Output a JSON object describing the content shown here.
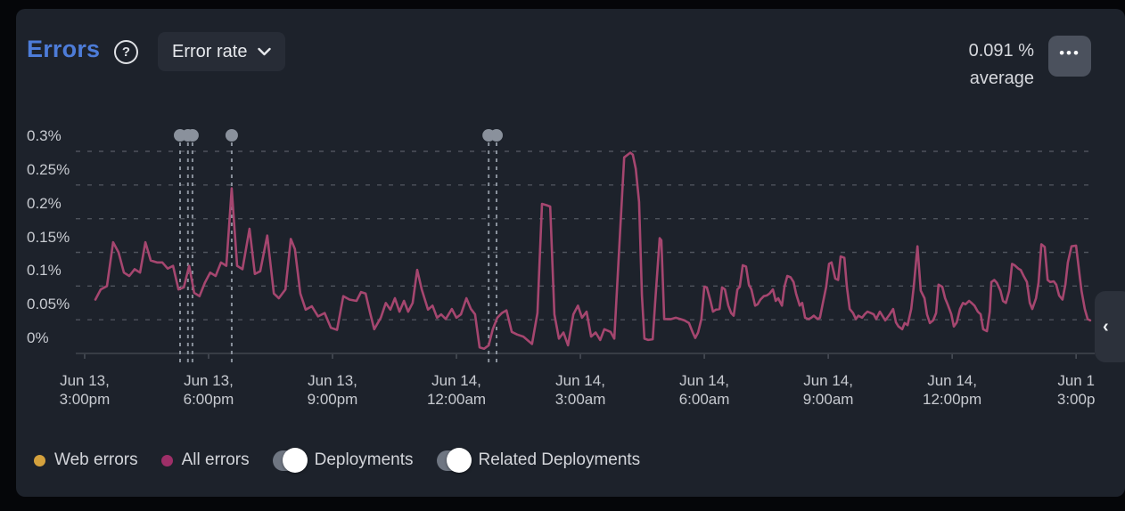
{
  "header": {
    "title": "Errors",
    "help_icon": "?",
    "metric_selector_label": "Error rate",
    "summary_value": "0.091 %",
    "summary_caption": "average",
    "menu_icon": "•••"
  },
  "colors": {
    "page_bg": "#050609",
    "panel_bg": "#1d222b",
    "accent_blue": "#4d7cd8",
    "grid_line": "#4e535c",
    "axis_line": "#42464e",
    "axis_text": "#c7cad0",
    "error_line": "#a5466f",
    "web_errors_dot": "#d4a13d",
    "all_errors_dot": "#9e2f68",
    "deployment_marker": "#8a919c",
    "toggle_knob": "#ffffff"
  },
  "chart_data": {
    "type": "line",
    "title": "Error rate",
    "xlabel": "",
    "ylabel": "",
    "grid": "horizontal-dashed",
    "legend_position": "bottom",
    "ylim": [
      0,
      0.3
    ],
    "xlim_hours": [
      -0.215,
      24.45
    ],
    "y_ticks": [
      {
        "label": "0.3%",
        "value": 0.3
      },
      {
        "label": "0.25%",
        "value": 0.25
      },
      {
        "label": "0.2%",
        "value": 0.2
      },
      {
        "label": "0.15%",
        "value": 0.15
      },
      {
        "label": "0.1%",
        "value": 0.1
      },
      {
        "label": "0.05%",
        "value": 0.05
      },
      {
        "label": "0%",
        "value": 0
      }
    ],
    "x_ticks": [
      {
        "t": 0,
        "line1": "Jun 13,",
        "line2": "3:00pm"
      },
      {
        "t": 3,
        "line1": "Jun 13,",
        "line2": "6:00pm"
      },
      {
        "t": 6,
        "line1": "Jun 13,",
        "line2": "9:00pm"
      },
      {
        "t": 9,
        "line1": "Jun 14,",
        "line2": "12:00am"
      },
      {
        "t": 12,
        "line1": "Jun 14,",
        "line2": "3:00am"
      },
      {
        "t": 15,
        "line1": "Jun 14,",
        "line2": "6:00am"
      },
      {
        "t": 18,
        "line1": "Jun 14,",
        "line2": "9:00am"
      },
      {
        "t": 21,
        "line1": "Jun 14,",
        "line2": "12:00pm"
      },
      {
        "t": 24,
        "line1": "Jun 1",
        "line2": "3:00p"
      }
    ],
    "deployments": {
      "color": "#8a919c",
      "times_hours": [
        2.31,
        2.5,
        2.61,
        3.56,
        9.78,
        9.97
      ]
    },
    "series": [
      {
        "name": "All errors",
        "color": "#a5466f",
        "unit": "%",
        "points": [
          [
            0.26,
            0.08
          ],
          [
            0.39,
            0.095
          ],
          [
            0.54,
            0.1
          ],
          [
            0.69,
            0.165
          ],
          [
            0.82,
            0.15
          ],
          [
            0.95,
            0.12
          ],
          [
            1.08,
            0.115
          ],
          [
            1.21,
            0.125
          ],
          [
            1.34,
            0.12
          ],
          [
            1.47,
            0.165
          ],
          [
            1.6,
            0.138
          ],
          [
            1.75,
            0.135
          ],
          [
            1.88,
            0.135
          ],
          [
            2.01,
            0.126
          ],
          [
            2.14,
            0.13
          ],
          [
            2.27,
            0.095
          ],
          [
            2.4,
            0.098
          ],
          [
            2.53,
            0.13
          ],
          [
            2.65,
            0.09
          ],
          [
            2.78,
            0.085
          ],
          [
            2.91,
            0.105
          ],
          [
            3.04,
            0.12
          ],
          [
            3.17,
            0.115
          ],
          [
            3.3,
            0.135
          ],
          [
            3.43,
            0.13
          ],
          [
            3.56,
            0.245
          ],
          [
            3.69,
            0.13
          ],
          [
            3.82,
            0.125
          ],
          [
            3.99,
            0.185
          ],
          [
            4.12,
            0.118
          ],
          [
            4.25,
            0.122
          ],
          [
            4.42,
            0.175
          ],
          [
            4.58,
            0.089
          ],
          [
            4.7,
            0.082
          ],
          [
            4.86,
            0.095
          ],
          [
            4.99,
            0.17
          ],
          [
            5.09,
            0.155
          ],
          [
            5.22,
            0.089
          ],
          [
            5.35,
            0.065
          ],
          [
            5.5,
            0.07
          ],
          [
            5.65,
            0.055
          ],
          [
            5.81,
            0.06
          ],
          [
            5.96,
            0.038
          ],
          [
            6.11,
            0.035
          ],
          [
            6.26,
            0.085
          ],
          [
            6.41,
            0.08
          ],
          [
            6.58,
            0.078
          ],
          [
            6.69,
            0.091
          ],
          [
            6.8,
            0.089
          ],
          [
            6.91,
            0.06
          ],
          [
            7.01,
            0.036
          ],
          [
            7.17,
            0.053
          ],
          [
            7.29,
            0.075
          ],
          [
            7.4,
            0.065
          ],
          [
            7.51,
            0.082
          ],
          [
            7.62,
            0.062
          ],
          [
            7.73,
            0.078
          ],
          [
            7.83,
            0.062
          ],
          [
            7.94,
            0.075
          ],
          [
            8.05,
            0.124
          ],
          [
            8.16,
            0.095
          ],
          [
            8.31,
            0.065
          ],
          [
            8.42,
            0.071
          ],
          [
            8.53,
            0.053
          ],
          [
            8.63,
            0.058
          ],
          [
            8.74,
            0.051
          ],
          [
            8.89,
            0.066
          ],
          [
            9.0,
            0.053
          ],
          [
            9.11,
            0.058
          ],
          [
            9.24,
            0.082
          ],
          [
            9.35,
            0.066
          ],
          [
            9.45,
            0.058
          ],
          [
            9.56,
            0.009
          ],
          [
            9.67,
            0.007
          ],
          [
            9.78,
            0.012
          ],
          [
            9.88,
            0.036
          ],
          [
            9.99,
            0.053
          ],
          [
            10.1,
            0.06
          ],
          [
            10.21,
            0.064
          ],
          [
            10.34,
            0.032
          ],
          [
            10.47,
            0.028
          ],
          [
            10.62,
            0.025
          ],
          [
            10.83,
            0.014
          ],
          [
            10.96,
            0.06
          ],
          [
            11.07,
            0.222
          ],
          [
            11.18,
            0.22
          ],
          [
            11.27,
            0.218
          ],
          [
            11.37,
            0.058
          ],
          [
            11.48,
            0.022
          ],
          [
            11.59,
            0.031
          ],
          [
            11.7,
            0.012
          ],
          [
            11.83,
            0.058
          ],
          [
            11.94,
            0.071
          ],
          [
            12.04,
            0.053
          ],
          [
            12.15,
            0.062
          ],
          [
            12.26,
            0.025
          ],
          [
            12.37,
            0.031
          ],
          [
            12.48,
            0.02
          ],
          [
            12.58,
            0.036
          ],
          [
            12.73,
            0.032
          ],
          [
            12.82,
            0.022
          ],
          [
            12.95,
            0.168
          ],
          [
            13.06,
            0.291
          ],
          [
            13.21,
            0.298
          ],
          [
            13.27,
            0.295
          ],
          [
            13.34,
            0.274
          ],
          [
            13.42,
            0.225
          ],
          [
            13.49,
            0.086
          ],
          [
            13.55,
            0.022
          ],
          [
            13.64,
            0.02
          ],
          [
            13.75,
            0.021
          ],
          [
            13.81,
            0.075
          ],
          [
            13.92,
            0.171
          ],
          [
            13.96,
            0.168
          ],
          [
            14.03,
            0.051
          ],
          [
            14.2,
            0.051
          ],
          [
            14.31,
            0.053
          ],
          [
            14.42,
            0.051
          ],
          [
            14.52,
            0.049
          ],
          [
            14.63,
            0.045
          ],
          [
            14.72,
            0.031
          ],
          [
            14.78,
            0.023
          ],
          [
            14.85,
            0.031
          ],
          [
            14.93,
            0.051
          ],
          [
            15.0,
            0.099
          ],
          [
            15.06,
            0.098
          ],
          [
            15.15,
            0.078
          ],
          [
            15.21,
            0.062
          ],
          [
            15.28,
            0.065
          ],
          [
            15.37,
            0.066
          ],
          [
            15.43,
            0.098
          ],
          [
            15.5,
            0.095
          ],
          [
            15.58,
            0.071
          ],
          [
            15.65,
            0.06
          ],
          [
            15.71,
            0.056
          ],
          [
            15.8,
            0.095
          ],
          [
            15.86,
            0.099
          ],
          [
            15.93,
            0.131
          ],
          [
            16.01,
            0.129
          ],
          [
            16.08,
            0.102
          ],
          [
            16.14,
            0.095
          ],
          [
            16.23,
            0.071
          ],
          [
            16.29,
            0.073
          ],
          [
            16.36,
            0.08
          ],
          [
            16.44,
            0.085
          ],
          [
            16.51,
            0.086
          ],
          [
            16.58,
            0.089
          ],
          [
            16.66,
            0.095
          ],
          [
            16.73,
            0.078
          ],
          [
            16.79,
            0.082
          ],
          [
            16.88,
            0.071
          ],
          [
            16.94,
            0.099
          ],
          [
            17.01,
            0.115
          ],
          [
            17.09,
            0.113
          ],
          [
            17.16,
            0.106
          ],
          [
            17.22,
            0.089
          ],
          [
            17.31,
            0.071
          ],
          [
            17.37,
            0.075
          ],
          [
            17.44,
            0.053
          ],
          [
            17.52,
            0.051
          ],
          [
            17.59,
            0.053
          ],
          [
            17.65,
            0.056
          ],
          [
            17.74,
            0.051
          ],
          [
            17.8,
            0.053
          ],
          [
            17.87,
            0.075
          ],
          [
            17.95,
            0.099
          ],
          [
            18.02,
            0.133
          ],
          [
            18.08,
            0.135
          ],
          [
            18.17,
            0.111
          ],
          [
            18.24,
            0.109
          ],
          [
            18.3,
            0.144
          ],
          [
            18.39,
            0.142
          ],
          [
            18.45,
            0.099
          ],
          [
            18.52,
            0.066
          ],
          [
            18.6,
            0.06
          ],
          [
            18.67,
            0.051
          ],
          [
            18.73,
            0.056
          ],
          [
            18.82,
            0.053
          ],
          [
            18.88,
            0.058
          ],
          [
            18.95,
            0.062
          ],
          [
            19.03,
            0.06
          ],
          [
            19.1,
            0.058
          ],
          [
            19.16,
            0.051
          ],
          [
            19.25,
            0.062
          ],
          [
            19.31,
            0.056
          ],
          [
            19.38,
            0.049
          ],
          [
            19.49,
            0.058
          ],
          [
            19.57,
            0.066
          ],
          [
            19.64,
            0.046
          ],
          [
            19.7,
            0.04
          ],
          [
            19.79,
            0.036
          ],
          [
            19.85,
            0.045
          ],
          [
            19.92,
            0.042
          ],
          [
            20.01,
            0.066
          ],
          [
            20.07,
            0.099
          ],
          [
            20.16,
            0.159
          ],
          [
            20.24,
            0.093
          ],
          [
            20.33,
            0.082
          ],
          [
            20.39,
            0.058
          ],
          [
            20.46,
            0.045
          ],
          [
            20.54,
            0.049
          ],
          [
            20.61,
            0.06
          ],
          [
            20.67,
            0.102
          ],
          [
            20.76,
            0.099
          ],
          [
            20.83,
            0.082
          ],
          [
            20.89,
            0.073
          ],
          [
            20.98,
            0.058
          ],
          [
            21.04,
            0.04
          ],
          [
            21.11,
            0.046
          ],
          [
            21.19,
            0.066
          ],
          [
            21.26,
            0.075
          ],
          [
            21.32,
            0.073
          ],
          [
            21.41,
            0.078
          ],
          [
            21.47,
            0.075
          ],
          [
            21.54,
            0.071
          ],
          [
            21.62,
            0.062
          ],
          [
            21.69,
            0.058
          ],
          [
            21.75,
            0.036
          ],
          [
            21.84,
            0.033
          ],
          [
            21.91,
            0.062
          ],
          [
            21.95,
            0.106
          ],
          [
            22.02,
            0.109
          ],
          [
            22.08,
            0.105
          ],
          [
            22.17,
            0.093
          ],
          [
            22.23,
            0.078
          ],
          [
            22.3,
            0.075
          ],
          [
            22.38,
            0.093
          ],
          [
            22.45,
            0.133
          ],
          [
            22.51,
            0.131
          ],
          [
            22.6,
            0.126
          ],
          [
            22.66,
            0.124
          ],
          [
            22.73,
            0.115
          ],
          [
            22.81,
            0.106
          ],
          [
            22.88,
            0.075
          ],
          [
            22.94,
            0.066
          ],
          [
            23.03,
            0.082
          ],
          [
            23.09,
            0.105
          ],
          [
            23.16,
            0.162
          ],
          [
            23.24,
            0.158
          ],
          [
            23.31,
            0.109
          ],
          [
            23.37,
            0.106
          ],
          [
            23.46,
            0.107
          ],
          [
            23.52,
            0.102
          ],
          [
            23.59,
            0.086
          ],
          [
            23.67,
            0.08
          ],
          [
            23.74,
            0.102
          ],
          [
            23.8,
            0.135
          ],
          [
            23.89,
            0.159
          ],
          [
            24.0,
            0.16
          ],
          [
            24.06,
            0.129
          ],
          [
            24.13,
            0.093
          ],
          [
            24.21,
            0.066
          ],
          [
            24.28,
            0.051
          ],
          [
            24.34,
            0.049
          ]
        ]
      }
    ]
  },
  "legend": {
    "items": [
      {
        "kind": "dot",
        "color": "#d4a13d",
        "label": "Web errors"
      },
      {
        "kind": "dot",
        "color": "#9e2f68",
        "label": "All errors"
      },
      {
        "kind": "toggle",
        "state": "on",
        "label": "Deployments"
      },
      {
        "kind": "toggle",
        "state": "on",
        "label": "Related Deployments"
      }
    ]
  },
  "panel_handle": {
    "chevron": "‹"
  }
}
